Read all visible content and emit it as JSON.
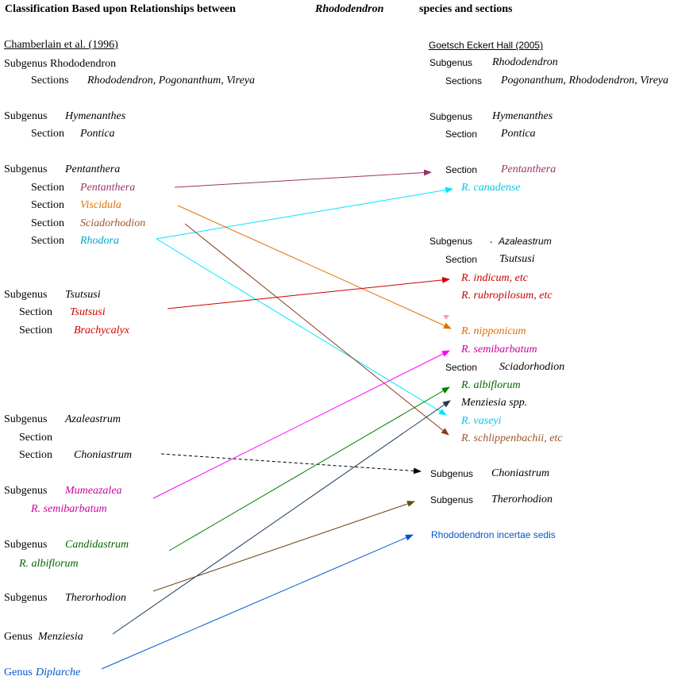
{
  "title": {
    "part1": "Classification Based upon Relationships between",
    "genus": "Rhododendron",
    "part2": "species and sections"
  },
  "left": {
    "heading": "Chamberlain et al. (1996)",
    "subgenus_rhododendron": "Subgenus Rhododendron",
    "sections_label": "Sections",
    "sections_rhododendron": "Rhododendron, Pogonanthum, Vireya",
    "subgenus_label": "Subgenus",
    "section_label": "Section",
    "hymenanthes": "Hymenanthes",
    "pontica": "Pontica",
    "pentanthera_subgenus": "Pentanthera",
    "pentanthera_section": "Pentanthera",
    "viscidula": "Viscidula",
    "sciadorhodion": "Sciadorhodion",
    "rhodora": "Rhodora",
    "tsutsusi_subgenus": "Tsutsusi",
    "tsutsusi_section": "Tsutsusi",
    "brachycalyx": "Brachycalyx",
    "azaleastrum": "Azaleastrum",
    "choniastrum": "Choniastrum",
    "mumeazalea": "Mumeazalea",
    "r_semibarbatum": "R. semibarbatum",
    "candidastrum": "Candidastrum",
    "r_albiflorum": "R. albiflorum",
    "therorhodion": "Therorhodion",
    "genus_label": "Genus",
    "menziesia": "Menziesia",
    "diplarche": "Diplarche"
  },
  "right": {
    "heading": "Goetsch Eckert Hall (2005)",
    "subgenus_label": "Subgenus",
    "section_label": "Section",
    "sections_label": "Sections",
    "rhododendron": "Rhododendron",
    "sections_list": "Pogonanthum, Rhododendron, Vireya",
    "hymenanthes": "Hymenanthes",
    "pontica": "Pontica",
    "pentanthera": "Pentanthera",
    "r_canadense": "R. canadense",
    "azaleastrum_dot": ".",
    "azaleastrum": "Azaleastrum",
    "tsutsusi": "Tsutsusi",
    "r_indicum": "R. indicum, etc",
    "r_rubropilosum": "R. rubropilosum, etc",
    "r_nipponicum": "R. nipponicum",
    "r_semibarbatum": "R. semibarbatum",
    "sciadorhodion": "Sciadorhodion",
    "r_albiflorum": "R. albiflorum",
    "menziesia": "Menziesia spp.",
    "r_vaseyi": "R. vaseyi",
    "r_schlippenbachii": "R. schlippenbachii, etc",
    "choniastrum": "Choniastrum",
    "therorhodion": "Therorhodion",
    "incertae_sedis": "Rhododendron incertae sedis"
  },
  "colors": {
    "black": "#000000",
    "pentanthera": "#993366",
    "rhodora": "#00a0c8",
    "canadense": "#00c8e8",
    "cyan_line": "#00e5ff",
    "viscidula": "#e07000",
    "sciadorhodion": "#a0522d",
    "tsutsusi": "#cc0000",
    "mumeazalea": "#cc0099",
    "semibarbatum_line": "#ff00ff",
    "candidastrum": "#006600",
    "albiflorum_line": "#008000",
    "menziesia_line": "#1a3a5c",
    "schlippenbachii": "#8b3a1a",
    "therorhodion_line": "#6b4a10",
    "diplarche": "#0055cc"
  }
}
